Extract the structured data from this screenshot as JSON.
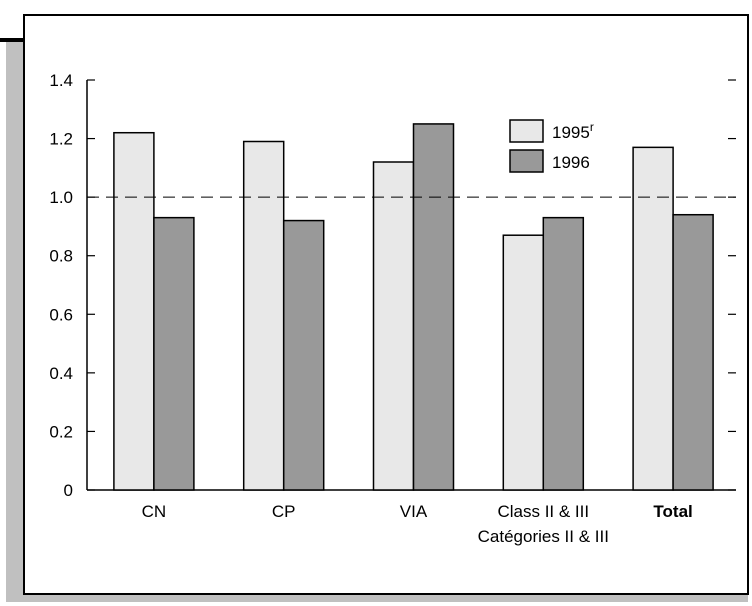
{
  "chart_data": {
    "type": "bar",
    "title": "",
    "xlabel": "",
    "ylabel": "",
    "categories": [
      "CN",
      "CP",
      "VIA",
      "Class II & III",
      "Total"
    ],
    "category_sublabels": [
      "",
      "",
      "",
      "Catégories II & III",
      ""
    ],
    "series": [
      {
        "name": "1995",
        "name_superscript": "r",
        "values": [
          1.22,
          1.19,
          1.12,
          0.87,
          1.17
        ],
        "color": "#e8e8e8"
      },
      {
        "name": "1996",
        "values": [
          0.93,
          0.92,
          1.25,
          0.93,
          0.94
        ],
        "color": "#999999"
      }
    ],
    "ylim": [
      0,
      1.4
    ],
    "yticks": [
      "0",
      "0.2",
      "0.4",
      "0.6",
      "0.8",
      "1.0",
      "1.2",
      "1.4"
    ],
    "reference_line": 1.0,
    "legend_position": "top-right",
    "grid": false,
    "frame_shadow_color": "#c0c0c0"
  }
}
